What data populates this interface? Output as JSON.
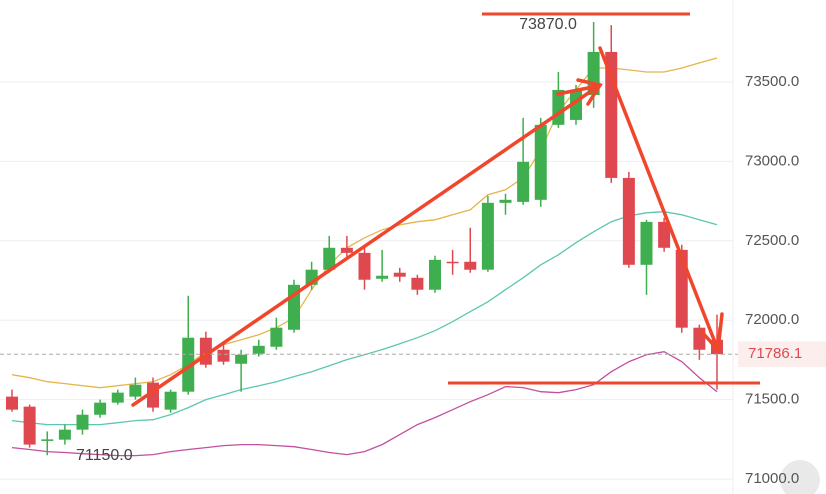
{
  "chart_data": {
    "type": "candlestick",
    "ylim": [
      70906,
      74016
    ],
    "yticks": [
      {
        "value": 71000,
        "label": "71000.0"
      },
      {
        "value": 71500,
        "label": "71500.0"
      },
      {
        "value": 72000,
        "label": "72000.0"
      },
      {
        "value": 72500,
        "label": "72500.0"
      },
      {
        "value": 73000,
        "label": "73000.0"
      },
      {
        "value": 73500,
        "label": "73500.0"
      }
    ],
    "grid": true,
    "up_color": "#3fae4f",
    "down_color": "#e0484f",
    "open": [
      71519,
      71456,
      71240,
      71248,
      71311,
      71405,
      71481,
      71519,
      71607,
      71437,
      71550,
      71890,
      71814,
      71726,
      71789,
      71833,
      71940,
      72223,
      72318,
      72456,
      72424,
      72261,
      72299,
      72267,
      72192,
      72368,
      72368,
      72318,
      72739,
      72745,
      72758,
      73230,
      73261,
      73418,
      73689,
      72896,
      72349,
      72619,
      72443,
      71953,
      71877
    ],
    "high": [
      71563,
      71469,
      71300,
      71343,
      71437,
      71500,
      71563,
      71639,
      71639,
      71563,
      72154,
      71928,
      71859,
      71814,
      71877,
      72016,
      72255,
      72368,
      72531,
      72531,
      72475,
      72443,
      72330,
      72286,
      72406,
      72443,
      72582,
      72783,
      72796,
      73274,
      73274,
      73563,
      73481,
      73877,
      73858,
      72934,
      72632,
      72645,
      72475,
      71972,
      72035
    ],
    "low": [
      71424,
      71198,
      71150,
      71217,
      71280,
      71386,
      71469,
      71500,
      71424,
      71418,
      71531,
      71701,
      71720,
      71550,
      71771,
      71814,
      71921,
      72192,
      72299,
      72380,
      72192,
      72242,
      72242,
      72160,
      72173,
      72286,
      72299,
      72305,
      72664,
      72727,
      72714,
      73211,
      73230,
      73337,
      72865,
      72330,
      72160,
      72431,
      71921,
      71751,
      71563
    ],
    "close": [
      71437,
      71217,
      71250,
      71311,
      71405,
      71481,
      71544,
      71594,
      71450,
      71550,
      71890,
      71720,
      71739,
      71783,
      71839,
      71953,
      72223,
      72318,
      72456,
      72424,
      72255,
      72280,
      72274,
      72192,
      72380,
      72361,
      72318,
      72739,
      72758,
      72997,
      73230,
      73450,
      73450,
      73689,
      72896,
      72349,
      72619,
      72456,
      71953,
      71814,
      71786.1
    ],
    "overlays": [
      {
        "color": "#e6b54a",
        "values": [
          71657,
          71638,
          71613,
          71601,
          71588,
          71575,
          71588,
          71601,
          71613,
          71657,
          71720,
          71802,
          71846,
          71877,
          71909,
          71953,
          72016,
          72192,
          72349,
          72456,
          72519,
          72569,
          72601,
          72620,
          72632,
          72664,
          72695,
          72790,
          72821,
          72896,
          73073,
          73312,
          73450,
          73588,
          73588,
          73576,
          73563,
          73563,
          73588,
          73620,
          73651
        ]
      },
      {
        "color": "#5cc6b0",
        "values": [
          71368,
          71355,
          71343,
          71343,
          71343,
          71343,
          71355,
          71368,
          71374,
          71406,
          71450,
          71500,
          71531,
          71563,
          71588,
          71613,
          71645,
          71676,
          71714,
          71752,
          71783,
          71815,
          71852,
          71890,
          71934,
          71991,
          72054,
          72116,
          72192,
          72267,
          72349,
          72412,
          72488,
          72557,
          72620,
          72657,
          72676,
          72683,
          72664,
          72632,
          72601
        ]
      },
      {
        "color": "#c2509e",
        "values": [
          71198,
          71186,
          71173,
          71167,
          71160,
          71154,
          71148,
          71148,
          71154,
          71173,
          71186,
          71198,
          71211,
          71217,
          71217,
          71211,
          71204,
          71186,
          71167,
          71154,
          71173,
          71217,
          71280,
          71343,
          71387,
          71437,
          71487,
          71531,
          71582,
          71576,
          71550,
          71544,
          71563,
          71594,
          71676,
          71739,
          71783,
          71802,
          71739,
          71638,
          71550
        ]
      }
    ],
    "high_label": "73870.0",
    "low_label": "71150.0",
    "last_price": 71786.1,
    "last_price_label": "71786.1"
  }
}
